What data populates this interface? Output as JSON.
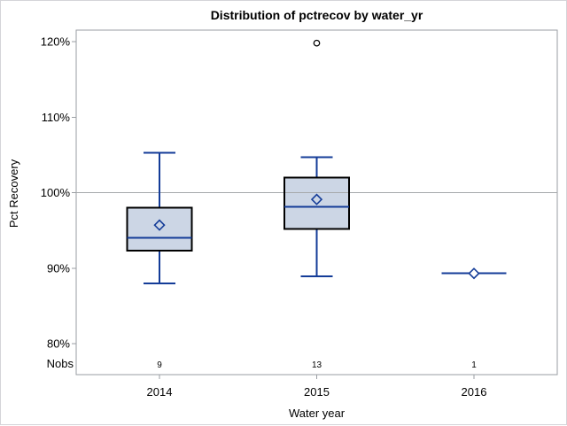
{
  "chart_data": {
    "type": "box",
    "title": "Distribution of pctrecov by water_yr",
    "xlabel": "Water year",
    "ylabel": "Pct Recovery",
    "nobs_row_label": "Nobs",
    "grid": "off",
    "legend": "none",
    "refline_y": 100,
    "y_axis": {
      "ticks": [
        120,
        110,
        100,
        90,
        80
      ],
      "tick_labels": [
        "120%",
        "110%",
        "100%",
        "90%",
        "80%"
      ],
      "ylim": [
        75.9,
        121.5
      ]
    },
    "groups": [
      {
        "category": "2014",
        "nobs": 9,
        "whisker_low": 88.0,
        "q1": 92.3,
        "median": 94.0,
        "q3": 98.0,
        "mean": 95.7,
        "whisker_high": 105.3,
        "outliers": []
      },
      {
        "category": "2015",
        "nobs": 13,
        "whisker_low": 88.9,
        "q1": 95.2,
        "median": 98.1,
        "q3": 102.0,
        "mean": 99.1,
        "whisker_high": 104.7,
        "outliers": [
          119.8
        ]
      },
      {
        "category": "2016",
        "nobs": 1,
        "whisker_low": 89.3,
        "q1": 89.3,
        "median": 89.3,
        "q3": 89.3,
        "mean": 89.3,
        "whisker_high": 89.3,
        "outliers": []
      }
    ],
    "colors": {
      "background": "#ffffff",
      "outer_border": "#d4d4d8",
      "frame": "#9a9ea3",
      "refline": "#a6a9ac",
      "box_fill": "#ccd6e5",
      "box_border": "#000000",
      "whisker": "#143c98",
      "median": "#143c98",
      "mean_marker": "#143c98",
      "outlier": "#000000",
      "text": "#000000"
    }
  }
}
